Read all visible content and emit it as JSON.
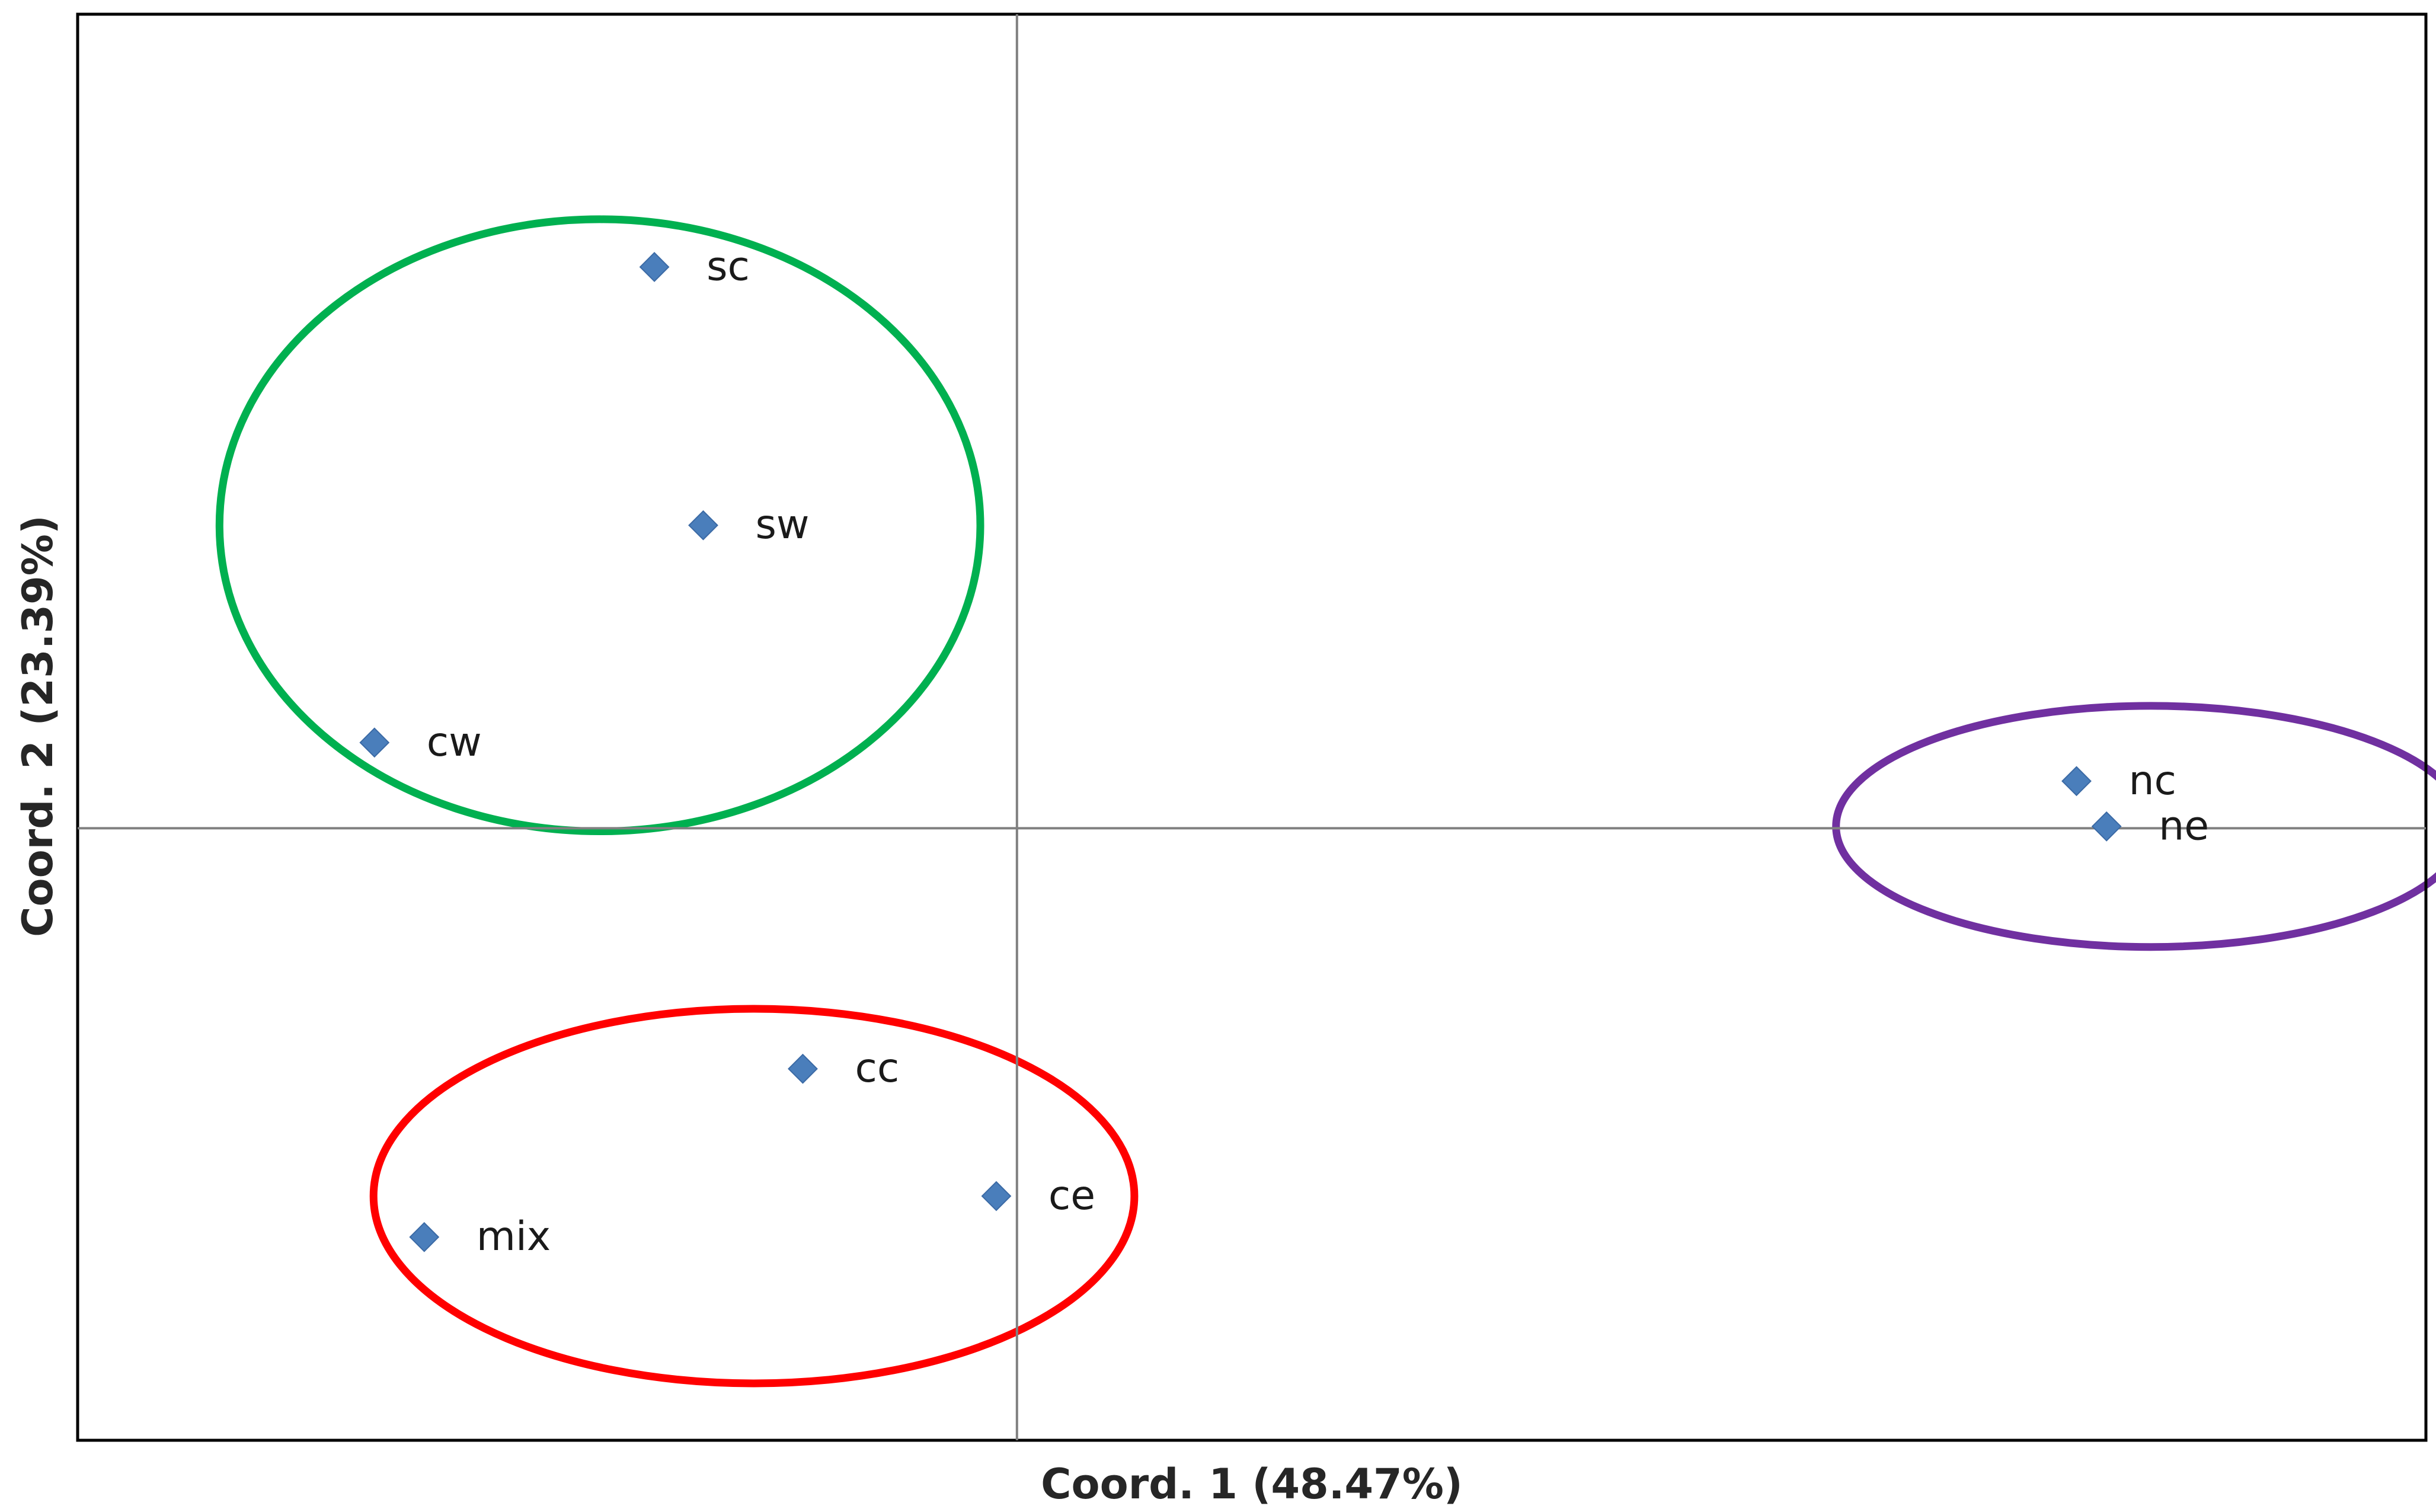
{
  "chart_data": {
    "type": "scatter",
    "title": "",
    "xlabel": "Coord. 1 (48.47%)",
    "ylabel": "Coord. 2 (23.39%)",
    "xlim": [
      -1.0,
      1.5
    ],
    "ylim": [
      -1.0,
      1.33
    ],
    "grid": false,
    "legend": "none",
    "marker": "diamond",
    "marker_color": "#4a7ebb",
    "points": [
      {
        "label": "sc",
        "x": -0.386,
        "y": 0.917
      },
      {
        "label": "sw",
        "x": -0.334,
        "y": 0.495
      },
      {
        "label": "cw",
        "x": -0.684,
        "y": 0.14
      },
      {
        "label": "nc",
        "x": 1.128,
        "y": 0.077
      },
      {
        "label": "ne",
        "x": 1.16,
        "y": 0.003
      },
      {
        "label": "cc",
        "x": -0.228,
        "y": -0.393
      },
      {
        "label": "ce",
        "x": -0.022,
        "y": -0.601
      },
      {
        "label": "mix",
        "x": -0.631,
        "y": -0.668
      }
    ],
    "groups": [
      {
        "color": "#00b050",
        "members": [
          "sc",
          "sw",
          "cw"
        ],
        "center": [
          -0.444,
          0.495
        ],
        "radius": [
          0.405,
          0.5
        ]
      },
      {
        "color": "#ff0000",
        "members": [
          "cc",
          "ce",
          "mix"
        ],
        "center": [
          -0.28,
          -0.601
        ],
        "radius": [
          0.405,
          0.306
        ]
      },
      {
        "color": "#7030a0",
        "members": [
          "nc",
          "ne"
        ],
        "center": [
          1.207,
          0.003
        ],
        "radius": [
          0.335,
          0.197
        ]
      }
    ],
    "colors": {
      "frame": "#000000",
      "axis_lines": "#808080"
    }
  }
}
